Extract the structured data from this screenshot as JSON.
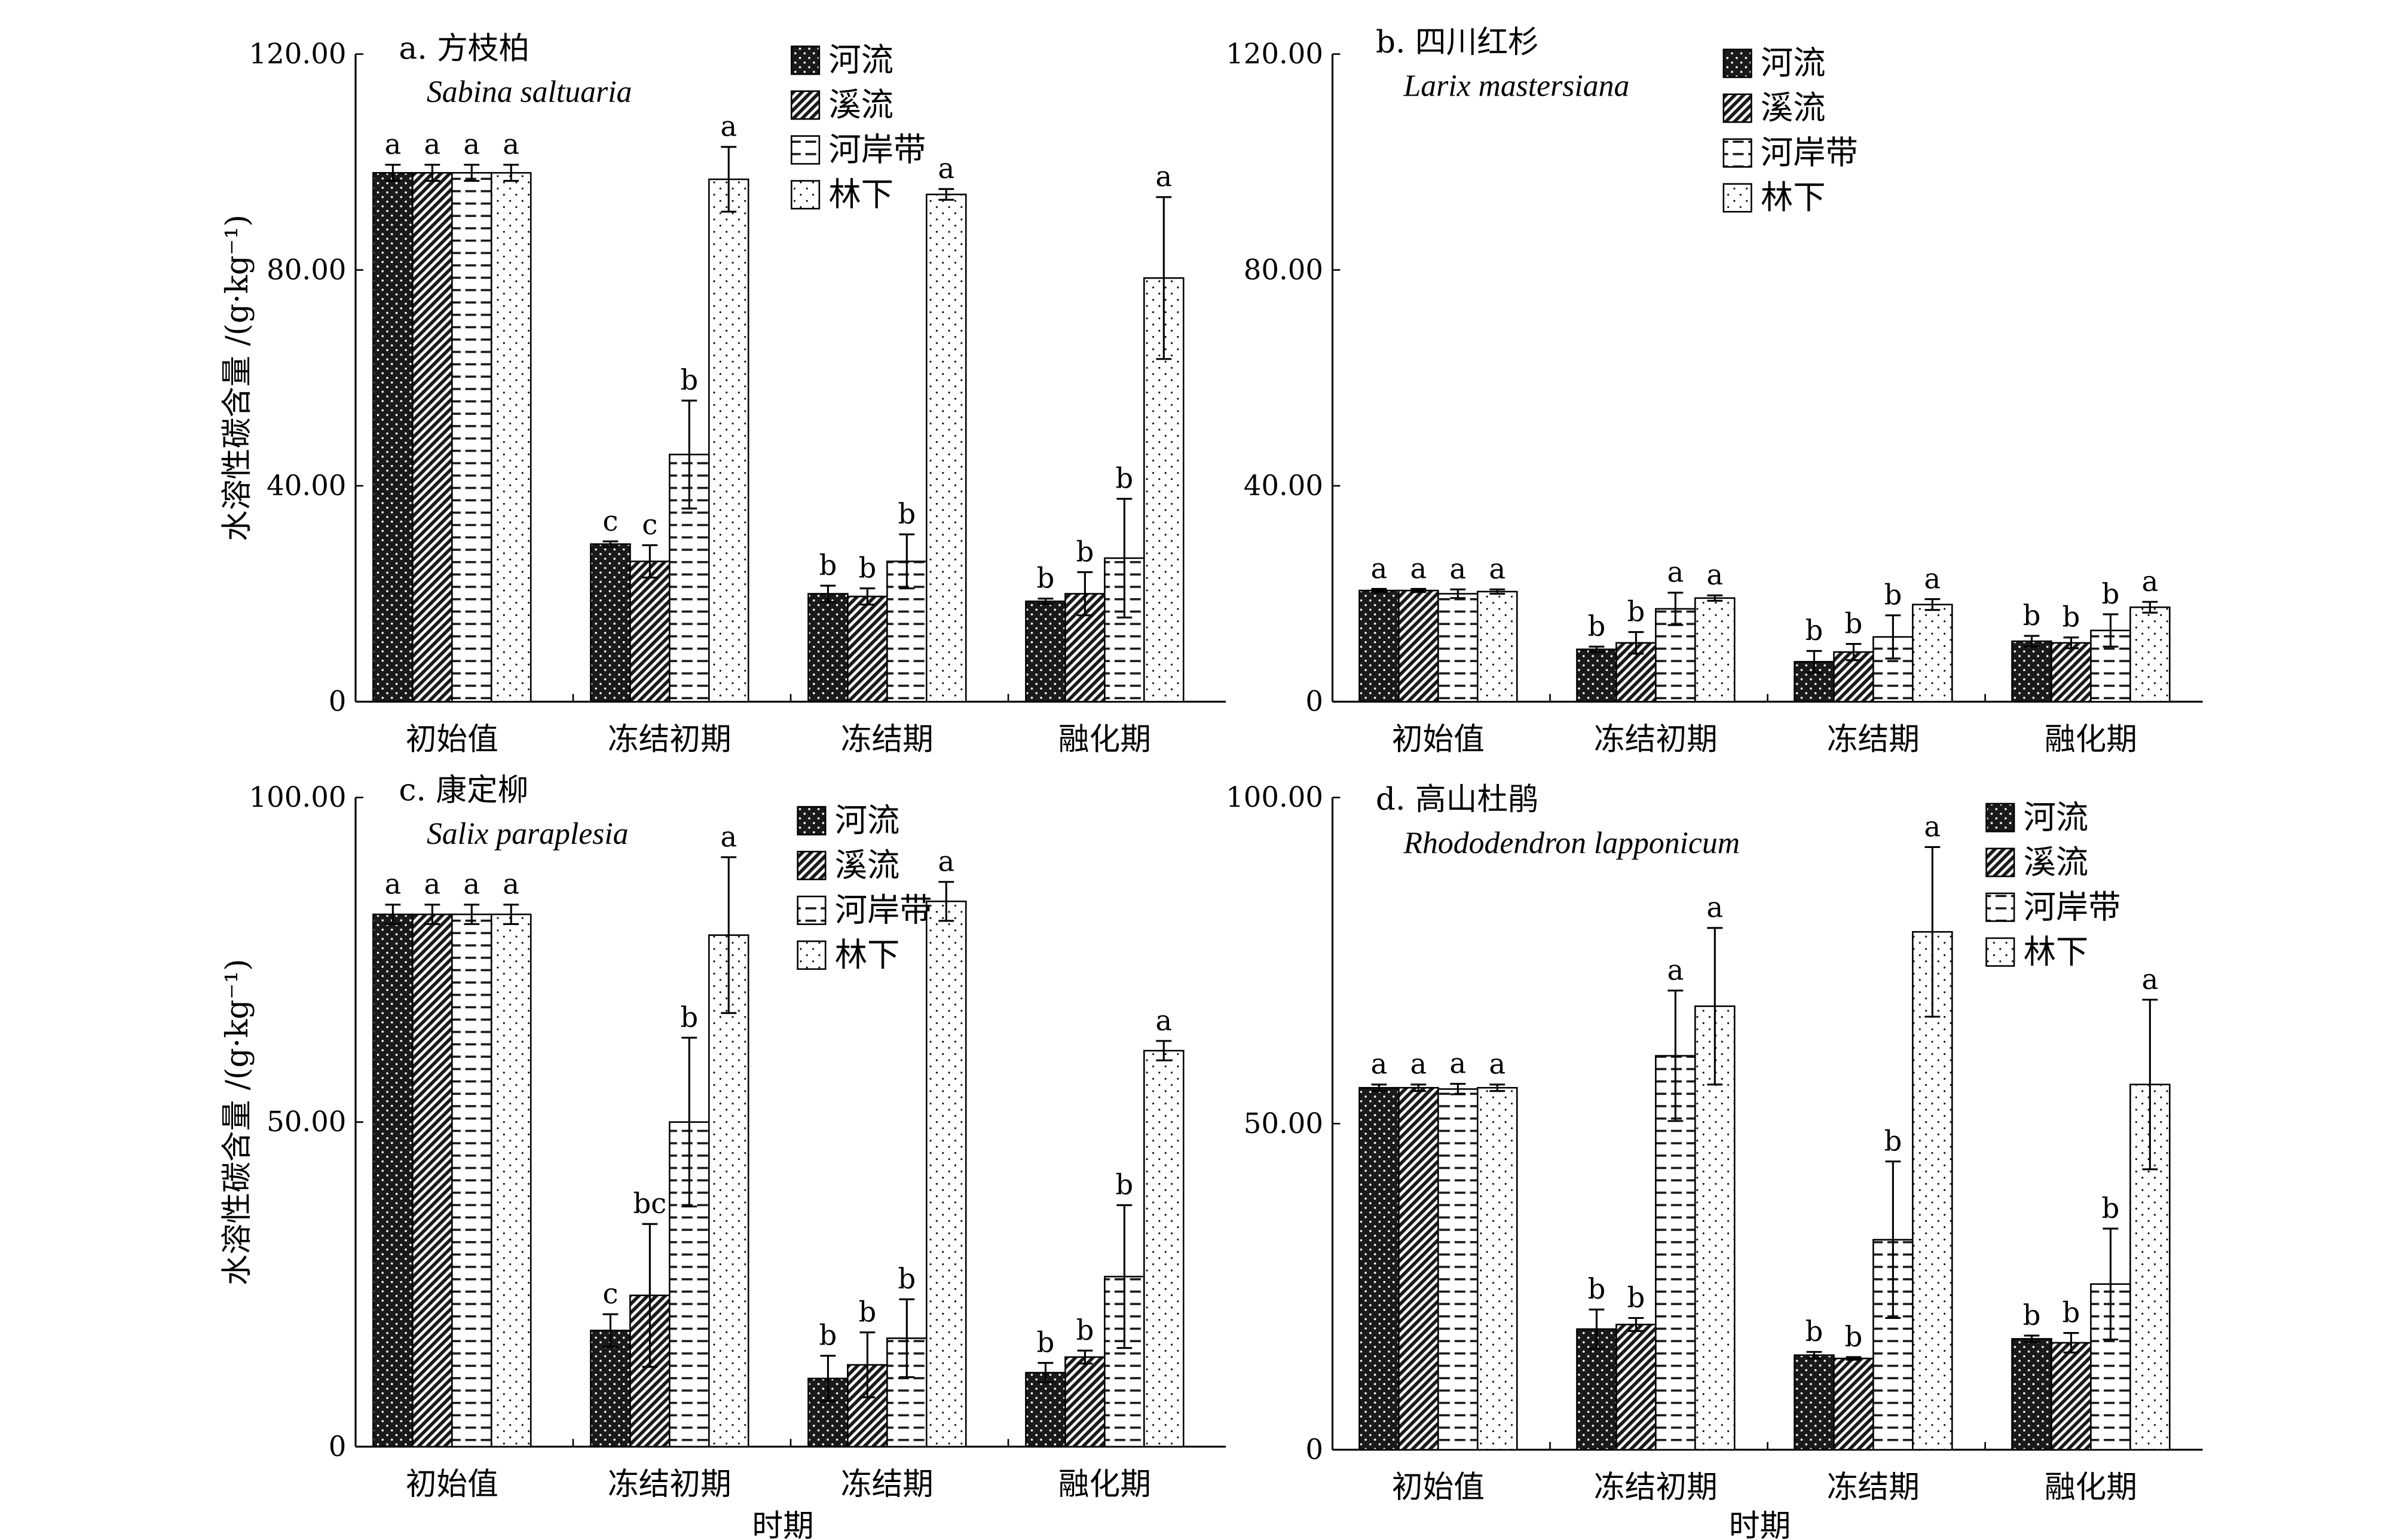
{
  "shared": {
    "categories": [
      "初始值",
      "冻结初期",
      "冻结期",
      "融化期"
    ],
    "series_names": [
      "河流",
      "溪流",
      "河岸带",
      "林下"
    ],
    "ylabel": "水溶性碳含量 /(g·kg⁻¹)",
    "xlabel": "时期",
    "colors": {
      "bar_dark": "#1a1a1a",
      "bar_light": "#ffffff",
      "axis": "#000000"
    }
  },
  "chart_data": [
    {
      "type": "bar",
      "title": "a. 方枝柏",
      "subtitle": "Sabina saltuaria",
      "ylim": [
        0,
        120
      ],
      "yticks": [
        "0",
        "40.00",
        "80.00",
        "120.00"
      ],
      "series": [
        {
          "name": "河流",
          "values": [
            98,
            29.2,
            20,
            18.6
          ],
          "errors": [
            1.5,
            0.5,
            1.5,
            0.5
          ],
          "letters": [
            "a",
            "c",
            "b",
            "b"
          ]
        },
        {
          "name": "溪流",
          "values": [
            98,
            26,
            19.5,
            20
          ],
          "errors": [
            1.5,
            3,
            1.5,
            4
          ],
          "letters": [
            "a",
            "c",
            "b",
            "b"
          ]
        },
        {
          "name": "河岸带",
          "values": [
            98,
            45.8,
            26,
            26.6
          ],
          "errors": [
            1.5,
            10,
            5,
            11
          ],
          "letters": [
            "a",
            "b",
            "b",
            "b"
          ]
        },
        {
          "name": "林下",
          "values": [
            98,
            96.8,
            94,
            78.5
          ],
          "errors": [
            1.5,
            6,
            1,
            15
          ],
          "letters": [
            "a",
            "a",
            "a",
            "a"
          ]
        }
      ]
    },
    {
      "type": "bar",
      "title": "b. 四川红杉",
      "subtitle": "Larix mastersiana",
      "ylim": [
        0,
        120
      ],
      "yticks": [
        "0",
        "40.00",
        "80.00",
        "120.00"
      ],
      "series": [
        {
          "name": "河流",
          "values": [
            20.6,
            9.7,
            7.4,
            11.2
          ],
          "errors": [
            0.3,
            0.5,
            2,
            1
          ],
          "letters": [
            "a",
            "b",
            "b",
            "b"
          ]
        },
        {
          "name": "溪流",
          "values": [
            20.6,
            10.9,
            9.2,
            10.9
          ],
          "errors": [
            0.3,
            2,
            1.5,
            1
          ],
          "letters": [
            "a",
            "b",
            "b",
            "b"
          ]
        },
        {
          "name": "河岸带",
          "values": [
            20,
            17.2,
            12,
            13.2
          ],
          "errors": [
            0.8,
            3,
            4,
            3
          ],
          "letters": [
            "a",
            "a",
            "b",
            "b"
          ]
        },
        {
          "name": "林下",
          "values": [
            20.4,
            19.2,
            18,
            17.5
          ],
          "errors": [
            0.4,
            0.5,
            1,
            1
          ],
          "letters": [
            "a",
            "a",
            "a",
            "a"
          ]
        }
      ]
    },
    {
      "type": "bar",
      "title": "c. 康定柳",
      "subtitle": "Salix paraplesia",
      "ylim": [
        0,
        100
      ],
      "yticks": [
        "0",
        "50.00",
        "100.00"
      ],
      "series": [
        {
          "name": "河流",
          "values": [
            82,
            17.9,
            10.5,
            11.4
          ],
          "errors": [
            1.5,
            2.5,
            3.5,
            1.5
          ],
          "letters": [
            "a",
            "c",
            "b",
            "b"
          ]
        },
        {
          "name": "溪流",
          "values": [
            82,
            23.3,
            12.6,
            13.8
          ],
          "errors": [
            1.5,
            11,
            5,
            1
          ],
          "letters": [
            "a",
            "bc",
            "b",
            "b"
          ]
        },
        {
          "name": "河岸带",
          "values": [
            82,
            50,
            16.7,
            26.2
          ],
          "errors": [
            1.5,
            13,
            6,
            11
          ],
          "letters": [
            "a",
            "b",
            "b",
            "b"
          ]
        },
        {
          "name": "林下",
          "values": [
            82,
            78.8,
            84,
            61
          ],
          "errors": [
            1.5,
            12,
            3,
            1.5
          ],
          "letters": [
            "a",
            "a",
            "a",
            "a"
          ]
        }
      ]
    },
    {
      "type": "bar",
      "title": "d. 高山杜鹃",
      "subtitle": "Rhododendron lapponicum",
      "ylim": [
        0,
        100
      ],
      "yticks": [
        "0",
        "50.00",
        "100.00"
      ],
      "series": [
        {
          "name": "河流",
          "values": [
            55.5,
            18.5,
            14.5,
            17
          ],
          "errors": [
            0.5,
            3,
            0.5,
            0.5
          ],
          "letters": [
            "a",
            "b",
            "b",
            "b"
          ]
        },
        {
          "name": "溪流",
          "values": [
            55.5,
            19.2,
            14,
            16.4
          ],
          "errors": [
            0.5,
            1,
            0.2,
            1.5
          ],
          "letters": [
            "a",
            "b",
            "b",
            "b"
          ]
        },
        {
          "name": "河岸带",
          "values": [
            55.3,
            60.4,
            32.2,
            25.4
          ],
          "errors": [
            0.8,
            10,
            12,
            8.5
          ],
          "letters": [
            "a",
            "a",
            "b",
            "b"
          ]
        },
        {
          "name": "林下",
          "values": [
            55.5,
            68,
            79.4,
            56
          ],
          "errors": [
            0.5,
            12,
            13,
            13
          ],
          "letters": [
            "a",
            "a",
            "a",
            "a"
          ]
        }
      ]
    }
  ]
}
